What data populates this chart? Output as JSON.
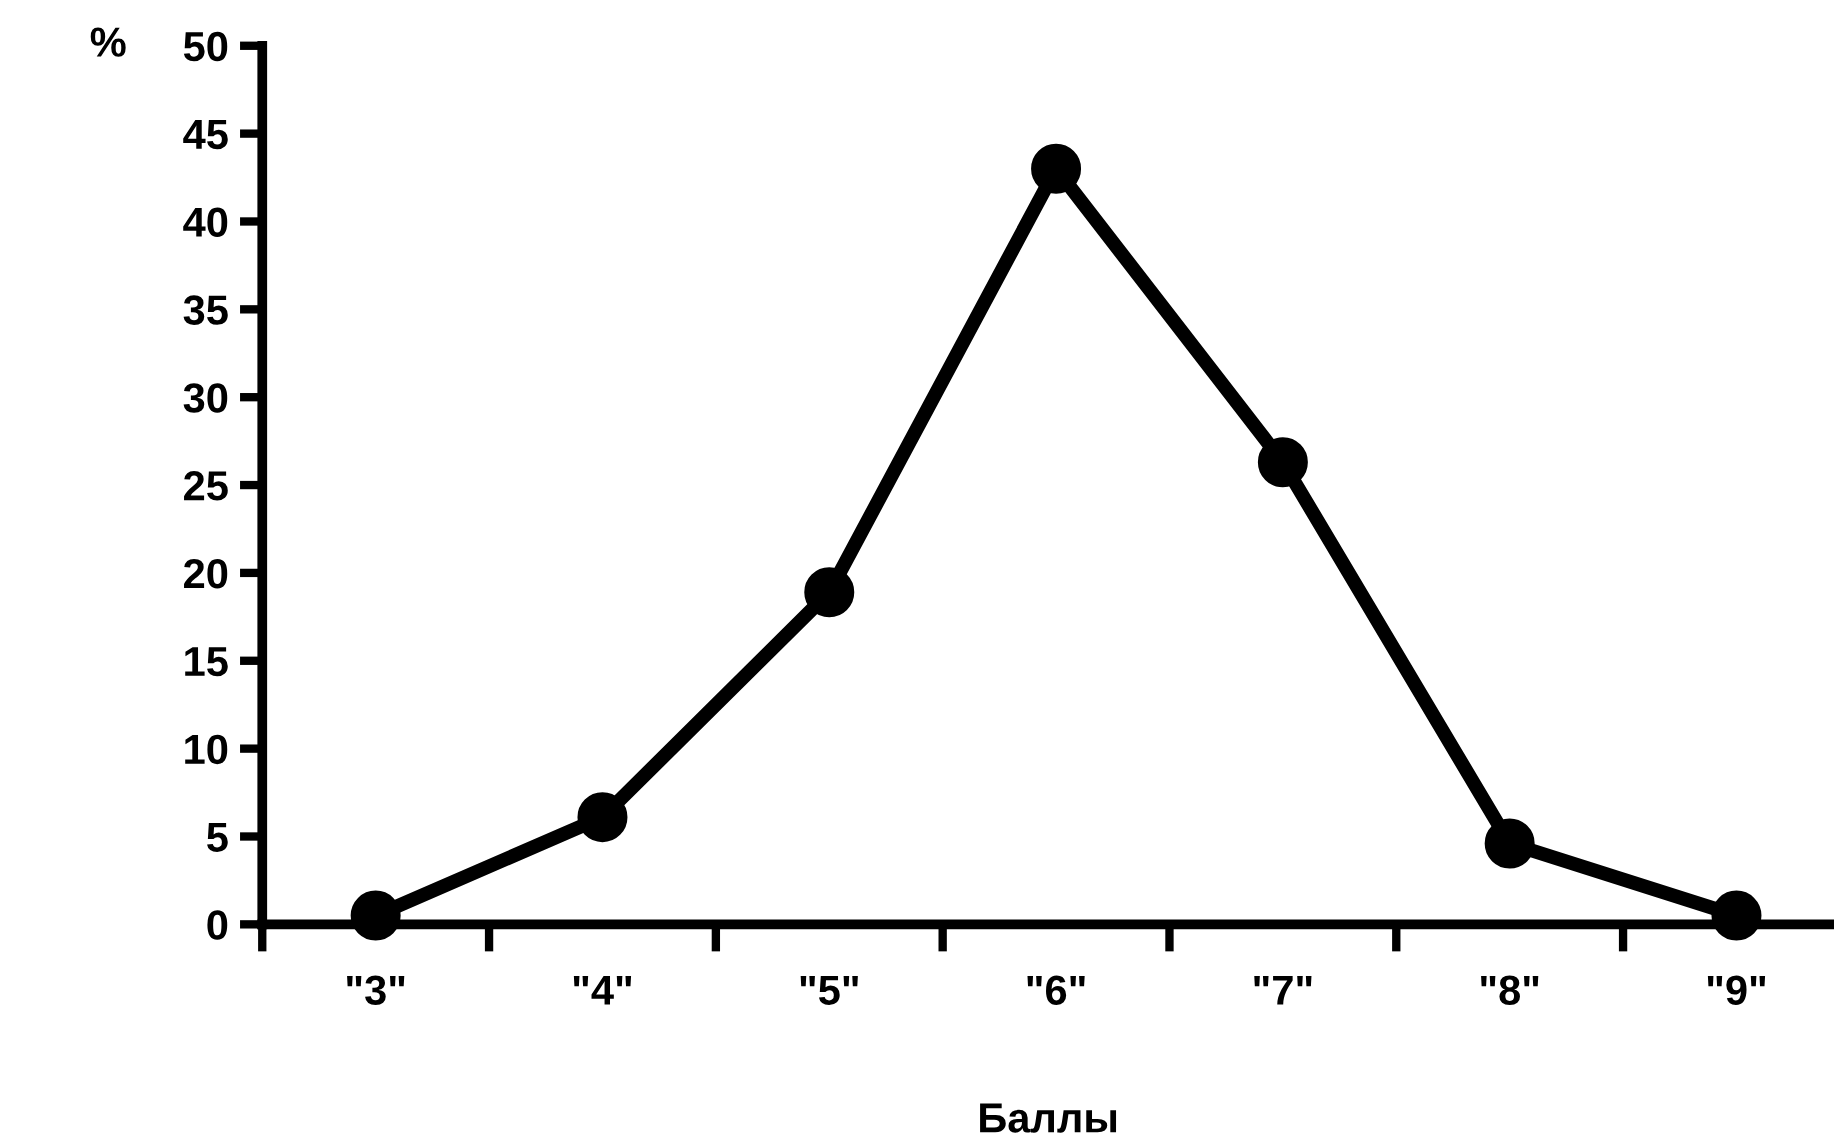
{
  "chart_data": {
    "type": "line",
    "xlabel": "Баллы",
    "ylabel": "%",
    "categories": [
      "\"3\"",
      "\"4\"",
      "\"5\"",
      "\"6\"",
      "\"7\"",
      "\"8\"",
      "\"9\""
    ],
    "series": [
      {
        "color": "#000000",
        "values": [
          0.5,
          6.1,
          18.9,
          43.0,
          26.3,
          4.6,
          0.5
        ]
      }
    ],
    "ylim": [
      0,
      50
    ],
    "yticks": [
      0,
      5,
      10,
      15,
      20,
      25,
      30,
      35,
      40,
      45,
      50
    ],
    "grid": false,
    "legend": false,
    "marker": "circle",
    "line_style": "solid"
  }
}
